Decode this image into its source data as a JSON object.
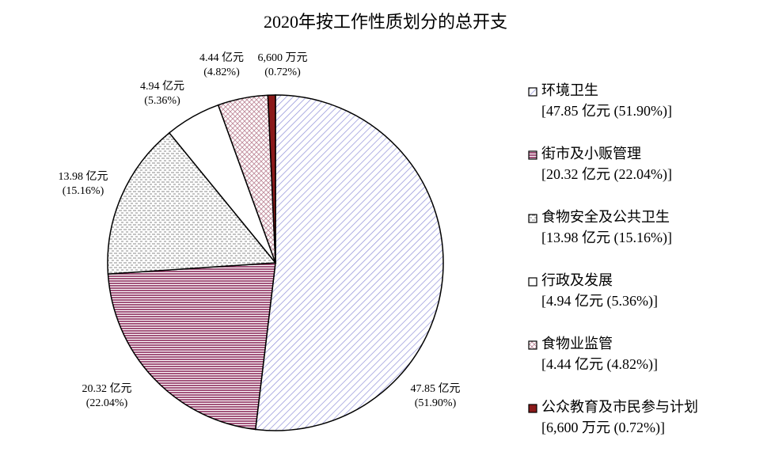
{
  "chart_data": {
    "type": "pie",
    "title": "2020年按工作性质划分的总开支",
    "categories": [
      "环境卫生",
      "街市及小贩管理",
      "食物安全及公共卫生",
      "行政及发展",
      "食物业监管",
      "公众教育及市民参与计划"
    ],
    "values": [
      51.9,
      22.04,
      15.16,
      5.36,
      4.82,
      0.72
    ],
    "value_labels": [
      [
        "47.85 亿元",
        "(51.90%)"
      ],
      [
        "20.32 亿元",
        "(22.04%)"
      ],
      [
        "13.98 亿元",
        "(15.16%)"
      ],
      [
        "4.94 亿元",
        "(5.36%)"
      ],
      [
        "4.44 亿元",
        "(4.82%)"
      ],
      [
        "6,600 万元",
        "(0.72%)"
      ]
    ],
    "legend_labels": [
      "[47.85 亿元 (51.90%)]",
      "[20.32 亿元 (22.04%)]",
      "[13.98 亿元 (15.16%)]",
      "[4.94 亿元 (5.36%)]",
      "[4.44 亿元 (4.82%)]",
      "[6,600 万元 (0.72%)]"
    ],
    "colors": [
      "#8f8fd8",
      "#8b2a5a",
      "#888888",
      "#ffffff",
      "#c08a9a",
      "#8b1a1a"
    ],
    "patterns": [
      "diagonal",
      "horizontal",
      "dashed",
      "none",
      "cross",
      "solid"
    ],
    "legend": "right"
  }
}
